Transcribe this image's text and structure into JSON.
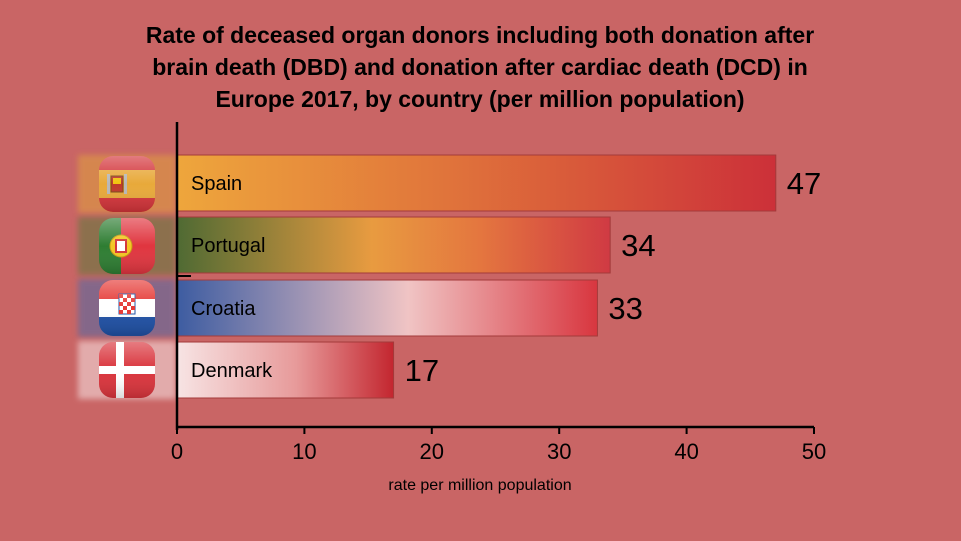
{
  "chart_data": {
    "type": "bar",
    "orientation": "horizontal",
    "title_lines": [
      "Rate of deceased organ donors including both donation after",
      "brain death (DBD) and donation after cardiac death (DCD) in",
      "Europe 2017, by country (per million population)"
    ],
    "xlabel": "rate per million population",
    "ylabel": "",
    "xlim": [
      0,
      50
    ],
    "x_ticks": [
      "0",
      "10",
      "20",
      "30",
      "40",
      "50"
    ],
    "grid": false,
    "categories": [
      "Spain",
      "Portugal",
      "Croatia",
      "Denmark"
    ],
    "values": [
      47,
      34,
      33,
      17
    ],
    "value_labels": [
      "47",
      "34",
      "33",
      "17"
    ],
    "flag_icons": [
      "spain-flag-icon",
      "portugal-flag-icon",
      "croatia-flag-icon",
      "denmark-flag-icon"
    ]
  },
  "colors": {
    "background": "#c96565",
    "axis": "#000000",
    "spain_gradient": [
      "#eea63c",
      "#e0743b",
      "#cc3039"
    ],
    "portugal_gradient": [
      "#4f6a33",
      "#e89b40",
      "#d03a43"
    ],
    "croatia_gradient": [
      "#3d5ca1",
      "#f0c4c4",
      "#d8363f"
    ],
    "denmark_gradient": [
      "#f7e4e4",
      "#e79a9a",
      "#c3262f"
    ]
  }
}
